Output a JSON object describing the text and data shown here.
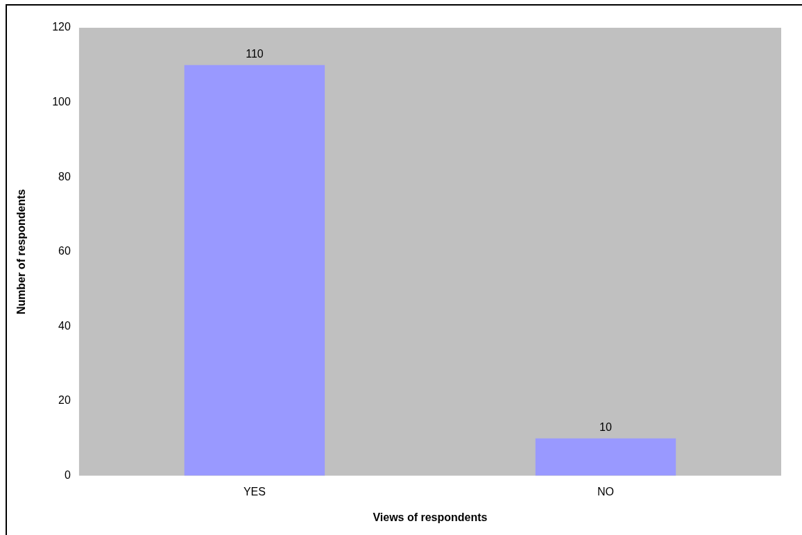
{
  "chart_data": {
    "type": "bar",
    "xlabel": "Views of respondents",
    "ylabel": "Number of respondents",
    "categories": [
      "YES",
      "NO"
    ],
    "values": [
      110,
      10
    ],
    "color": "#9999ff",
    "ylim": [
      0,
      120
    ],
    "yticks": [
      0,
      20,
      40,
      60,
      80,
      100,
      120
    ],
    "grid": false,
    "legend": false,
    "data_labels": true
  }
}
